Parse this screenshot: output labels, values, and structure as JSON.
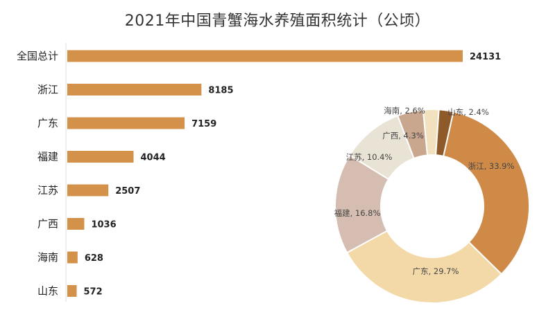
{
  "chart_data": [
    {
      "type": "bar",
      "orientation": "horizontal",
      "title": "2021年中国青蟹海水养殖面积统计（公顷）",
      "categories": [
        "全国总计",
        "浙江",
        "广东",
        "福建",
        "江苏",
        "广西",
        "海南",
        "山东"
      ],
      "values": [
        24131,
        8185,
        7159,
        4044,
        2507,
        1036,
        628,
        572
      ],
      "bar_color": "#D4914A",
      "grid": false,
      "legend": "none"
    },
    {
      "type": "pie",
      "variant": "donut",
      "slices": [
        {
          "label": "浙江",
          "value": 33.9,
          "display": "浙江, 33.9%",
          "color": "#CF8A48"
        },
        {
          "label": "广东",
          "value": 29.7,
          "display": "广东, 29.7%",
          "color": "#F4D9A8"
        },
        {
          "label": "福建",
          "value": 16.8,
          "display": "福建, 16.8%",
          "color": "#D5BDB1"
        },
        {
          "label": "江苏",
          "value": 10.4,
          "display": "江苏, 10.4%",
          "color": "#E9E3D5"
        },
        {
          "label": "广西",
          "value": 4.3,
          "display": "广西, 4.3%",
          "color": "#C9A68E"
        },
        {
          "label": "海南",
          "value": 2.6,
          "display": "海南, 2.6%",
          "color": "#F2E1BE"
        },
        {
          "label": "山东",
          "value": 2.4,
          "display": "山东, 2.4%",
          "color": "#8E5A2A"
        }
      ],
      "legend": "none"
    }
  ]
}
